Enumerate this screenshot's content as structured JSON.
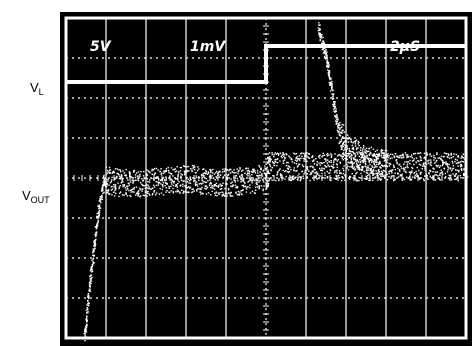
{
  "chart_data": {
    "type": "line",
    "grid": true,
    "div_x": 10,
    "div_y": 8,
    "scale_labels": [
      {
        "id": "vl_scale",
        "text": "5V"
      },
      {
        "id": "vout_scale",
        "text": "1mV"
      },
      {
        "id": "time_scale",
        "text": "2µS"
      }
    ],
    "channel_labels": {
      "vl_main": "V",
      "vl_sub": "L",
      "vout_main": "V",
      "vout_sub": "OUT"
    },
    "series": [
      {
        "name": "V_L",
        "color": "#ffffff",
        "points": [
          [
            0,
            6.4
          ],
          [
            5,
            6.4
          ],
          [
            5,
            7.3
          ],
          [
            10,
            7.3
          ]
        ]
      },
      {
        "name": "V_OUT",
        "color": "#ffffff",
        "points": [
          [
            0.45,
            0.0
          ],
          [
            0.6,
            1.5
          ],
          [
            0.8,
            3.2
          ],
          [
            0.95,
            4.0
          ],
          [
            1.2,
            3.9
          ],
          [
            2.0,
            3.9
          ],
          [
            3.0,
            4.0
          ],
          [
            4.0,
            3.9
          ],
          [
            5.0,
            4.0
          ],
          [
            5.05,
            4.3
          ],
          [
            6.0,
            4.3
          ],
          [
            8.0,
            4.3
          ],
          [
            10,
            4.3
          ]
        ]
      },
      {
        "name": "V_OUT_transient",
        "color": "#ffffff",
        "points": [
          [
            6.3,
            7.8
          ],
          [
            6.5,
            7.0
          ],
          [
            6.8,
            5.2
          ],
          [
            7.0,
            4.8
          ],
          [
            7.5,
            4.45
          ],
          [
            8.0,
            4.4
          ]
        ]
      }
    ]
  }
}
